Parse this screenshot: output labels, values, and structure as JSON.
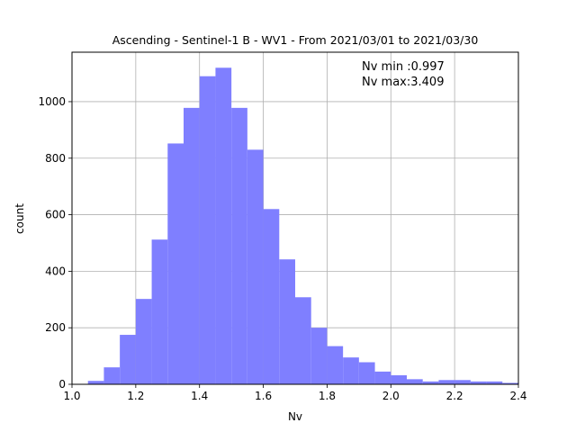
{
  "chart_data": {
    "type": "bar",
    "title": "Ascending - Sentinel-1 B - WV1 - From 2021/03/01 to 2021/03/30",
    "xlabel": "Nv",
    "ylabel": "count",
    "xlim": [
      1.0,
      2.4
    ],
    "ylim": [
      0,
      1175
    ],
    "xticks": [
      "1.0",
      "1.2",
      "1.4",
      "1.6",
      "1.8",
      "2.0",
      "2.2",
      "2.4"
    ],
    "yticks": [
      "0",
      "200",
      "400",
      "600",
      "800",
      "1000"
    ],
    "grid": true,
    "bar_color": "#7f7fff",
    "annotations": [
      "Nv min :0.997",
      "Nv max:3.409"
    ],
    "bin_width": 0.05,
    "bins": [
      {
        "x0": 1.05,
        "count": 12
      },
      {
        "x0": 1.1,
        "count": 60
      },
      {
        "x0": 1.15,
        "count": 175
      },
      {
        "x0": 1.2,
        "count": 302
      },
      {
        "x0": 1.25,
        "count": 512
      },
      {
        "x0": 1.3,
        "count": 852
      },
      {
        "x0": 1.35,
        "count": 978
      },
      {
        "x0": 1.4,
        "count": 1090
      },
      {
        "x0": 1.45,
        "count": 1120
      },
      {
        "x0": 1.5,
        "count": 978
      },
      {
        "x0": 1.55,
        "count": 830
      },
      {
        "x0": 1.6,
        "count": 620
      },
      {
        "x0": 1.65,
        "count": 442
      },
      {
        "x0": 1.7,
        "count": 308
      },
      {
        "x0": 1.75,
        "count": 200
      },
      {
        "x0": 1.8,
        "count": 135
      },
      {
        "x0": 1.85,
        "count": 95
      },
      {
        "x0": 1.9,
        "count": 78
      },
      {
        "x0": 1.95,
        "count": 45
      },
      {
        "x0": 2.0,
        "count": 32
      },
      {
        "x0": 2.05,
        "count": 18
      },
      {
        "x0": 2.1,
        "count": 10
      },
      {
        "x0": 2.15,
        "count": 15
      },
      {
        "x0": 2.2,
        "count": 15
      },
      {
        "x0": 2.25,
        "count": 10
      },
      {
        "x0": 2.3,
        "count": 10
      },
      {
        "x0": 2.35,
        "count": 5
      }
    ]
  }
}
